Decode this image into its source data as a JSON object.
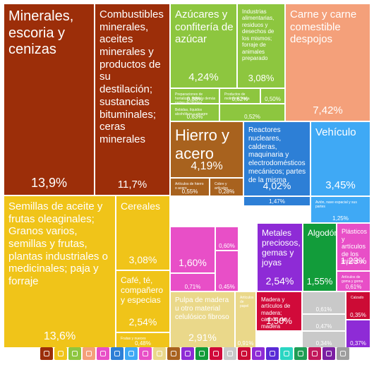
{
  "chart_data": {
    "type": "treemap",
    "tiles": [
      {
        "id": "minerales",
        "label": "Minerales, escoria y cenizas",
        "value": "13,9%",
        "color": "#9c2e09",
        "size": "big"
      },
      {
        "id": "combustibles",
        "label": "Combustibles minerales, aceites minerales y productos de su destilación; sustancias bituminales; ceras minerales",
        "value": "11,7%",
        "color": "#9c2e09",
        "size": "mid"
      },
      {
        "id": "azucares",
        "label": "Azúcares y confitería de azúcar",
        "value": "4,24%",
        "color": "#8dc63f",
        "size": "mid"
      },
      {
        "id": "alimentarias",
        "label": "Industrias alimentarias, residuos y desechos de los mismos; forraje de animales preparado",
        "value": "3,08%",
        "color": "#8dc63f",
        "size": "tiny"
      },
      {
        "id": "veg1",
        "label": "Preparaciones de hortalizas, frutas o demás partes de plantas",
        "value": "0,88%",
        "color": "#8dc63f",
        "size": "micro"
      },
      {
        "id": "veg2",
        "label": "Productos de molinería; malta",
        "value": "0,62%",
        "color": "#8dc63f",
        "size": "micro"
      },
      {
        "id": "veg3",
        "label": "",
        "value": "0,50%",
        "color": "#8dc63f",
        "size": "micro"
      },
      {
        "id": "veg4",
        "label": "Bebidas, líquidos alcohólicos y vinagre",
        "value": "0,63%",
        "color": "#8dc63f",
        "size": "micro"
      },
      {
        "id": "veg5",
        "label": "",
        "value": "0,52%",
        "color": "#8dc63f",
        "size": "micro"
      },
      {
        "id": "carne",
        "label": "Carne y carne comestible despojos",
        "value": "7,42%",
        "color": "#f4a07a",
        "size": "mid"
      },
      {
        "id": "hierro",
        "label": "Hierro y acero",
        "value": "4,19%",
        "color": "#a8621e",
        "size": "big2"
      },
      {
        "id": "reactores",
        "label": "Reactores nucleares, calderas, maquinaria y electrodomésticos mecánicos; partes de la misma",
        "value": "4,02%",
        "color": "#2d7fd6",
        "size": "small"
      },
      {
        "id": "maq2",
        "label": "",
        "value": "1,47%",
        "color": "#2d7fd6",
        "size": "micro"
      },
      {
        "id": "vehiculo",
        "label": "Vehículo",
        "value": "3,45%",
        "color": "#3fa9f5",
        "size": "mid"
      },
      {
        "id": "avion",
        "label": "Avión, nave espacial y sus partes",
        "value": "1,25%",
        "color": "#3fa9f5",
        "size": "micro"
      },
      {
        "id": "metal1",
        "label": "Artículos de hierro o acero",
        "value": "0,55%",
        "color": "#a8621e",
        "size": "micro"
      },
      {
        "id": "metal2",
        "label": "Cobre y artículos",
        "value": "0,28%",
        "color": "#a8621e",
        "size": "micro"
      },
      {
        "id": "semillas",
        "label": "Semillas de aceite y frutas oleaginales; Granos varios, semillas y frutas, plantas industriales o medicinales; paja y forraje",
        "value": "13,6%",
        "color": "#f0c419",
        "size": "big3"
      },
      {
        "id": "cereales",
        "label": "Cereales",
        "value": "3,08%",
        "color": "#f0c419",
        "size": "mid2"
      },
      {
        "id": "cafe",
        "label": "Café, té, compañero y especias",
        "value": "2,54%",
        "color": "#f0c419",
        "size": "small2"
      },
      {
        "id": "veg6",
        "label": "Frutas y nueces",
        "value": "0,48%",
        "color": "#f0c419",
        "size": "micro"
      },
      {
        "id": "quim1",
        "label": "",
        "value": "1,60%",
        "color": "#e84fc7",
        "size": "small3"
      },
      {
        "id": "quim2",
        "label": "",
        "value": "0,60%",
        "color": "#e84fc7",
        "size": "micro"
      },
      {
        "id": "quim3",
        "label": "",
        "value": "0,71%",
        "color": "#e84fc7",
        "size": "micro"
      },
      {
        "id": "quim4",
        "label": "",
        "value": "0,45%",
        "color": "#e84fc7",
        "size": "micro"
      },
      {
        "id": "metales_prec",
        "label": "Metales preciosos, gemas y joyas",
        "value": "2,54%",
        "color": "#8e2bd6",
        "size": "small4"
      },
      {
        "id": "algodon",
        "label": "Algodón",
        "value": "1,55%",
        "color": "#129c3a",
        "size": "small5"
      },
      {
        "id": "plasticos",
        "label": "Plásticos y artículos de los mismos",
        "value": "1,23%",
        "color": "#e84fc7",
        "size": "small6"
      },
      {
        "id": "gomas",
        "label": "Artículos de goma y goma",
        "value": "0,61%",
        "color": "#e84fc7",
        "size": "micro"
      },
      {
        "id": "pulpa",
        "label": "Pulpa de madera u otro material celulósico fibroso",
        "value": "2,91%",
        "color": "#ead88a",
        "size": "small7"
      },
      {
        "id": "papel",
        "label": "Artículos de papel",
        "value": "0,91%",
        "color": "#ead88a",
        "size": "micro"
      },
      {
        "id": "madera",
        "label": "Madera y artículos de madera; carbón de madera",
        "value": "1,50%",
        "color": "#d10a3a",
        "size": "small8"
      },
      {
        "id": "otros1",
        "label": "",
        "value": "0,61%",
        "color": "#c9c9c9",
        "size": "micro"
      },
      {
        "id": "otros2",
        "label": "",
        "value": "0,47%",
        "color": "#c9c9c9",
        "size": "micro"
      },
      {
        "id": "otros3",
        "label": "",
        "value": "0,34%",
        "color": "#c9c9c9",
        "size": "micro"
      },
      {
        "id": "calzado",
        "label": "Calzado",
        "value": "0,35%",
        "color": "#cc0b35",
        "size": "micro"
      },
      {
        "id": "textil2",
        "label": "",
        "value": "0,37%",
        "color": "#8e2bd6",
        "size": "micro"
      }
    ],
    "legend_colors": [
      "#9c2e09",
      "#f0c419",
      "#8dc63f",
      "#f4a07a",
      "#e84fc7",
      "#2d7fd6",
      "#3fa9f5",
      "#e84fc7",
      "#ead88a",
      "#a8621e",
      "#8e2bd6",
      "#129c3a",
      "#d10a3a",
      "#c9c9c9",
      "#cc0b35",
      "#8e2bd6",
      "#5a2bd6",
      "#2bd6c3",
      "#1f9d55",
      "#c2185b",
      "#7b1fa2",
      "#9e9e9e"
    ],
    "legend_icons": [
      "mineral-icon",
      "plant-icon",
      "food-icon",
      "animal-icon",
      "chemical-icon",
      "machine-icon",
      "vehicle-icon",
      "plastic-icon",
      "paper-icon",
      "metal-icon",
      "gem-icon",
      "textile-icon",
      "wood-icon",
      "stone-icon",
      "shoe-icon",
      "misc-icon",
      "instrument-icon",
      "weapon-icon",
      "art-icon",
      "service-icon",
      "fat-icon",
      "other-icon"
    ]
  }
}
